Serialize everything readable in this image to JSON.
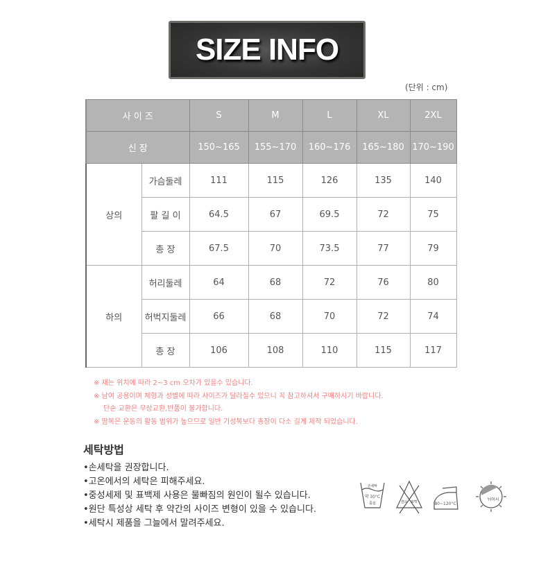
{
  "title": "SIZE INFO",
  "unit": "(단위 : cm)",
  "header": {
    "size_label": "사  이  즈",
    "height_label": "신          장",
    "sizes": [
      "S",
      "M",
      "L",
      "XL",
      "2XL"
    ],
    "heights": [
      "150~165",
      "155~170",
      "160~176",
      "165~180",
      "170~190"
    ]
  },
  "groups": [
    {
      "label": "상의",
      "rows": [
        {
          "label": "가슴둘레",
          "values": [
            "111",
            "115",
            "126",
            "135",
            "140"
          ]
        },
        {
          "label": "팔 길 이",
          "values": [
            "64.5",
            "67",
            "69.5",
            "72",
            "75"
          ]
        },
        {
          "label": "총    장",
          "values": [
            "67.5",
            "70",
            "73.5",
            "77",
            "79"
          ]
        }
      ]
    },
    {
      "label": "하의",
      "rows": [
        {
          "label": "허리둘레",
          "values": [
            "64",
            "68",
            "72",
            "76",
            "80"
          ]
        },
        {
          "label": "허벅지둘레",
          "values": [
            "66",
            "68",
            "70",
            "72",
            "74"
          ]
        },
        {
          "label": "총    장",
          "values": [
            "106",
            "108",
            "110",
            "115",
            "117"
          ]
        }
      ]
    }
  ],
  "notes": [
    "※ 재는 위치에 따라 2~3 cm 오차가 있을수 있습니다.",
    "※ 남여 공용이며 체형과 성별에 따라 사이즈가 달라질수 있으니 꼭 참고하셔서 구매하시기 바랍니다.",
    "단순 교환은 무상교환,반품이 불가합니다.",
    "※ 땀복은 운동의 활동 범위가 높으므로 일반 기성복보다 총장이 다소 길게 제작 되었습니다."
  ],
  "washing": {
    "title": "세탁방법",
    "items": [
      "•손세탁을 권장합니다.",
      "•고온에서의 세탁은 피해주세요.",
      "•중성세제 및 표백제 사용은 물빠짐의 원인이 될수 있습니다.",
      "•원단 특성상 세탁 후 약간의 사이즈 변형이 있을 수 있습니다.",
      "•세탁시 제품을 그늘에서 말려주세요."
    ],
    "icons": [
      {
        "name": "hand-wash-icon",
        "text": [
          "손세탁",
          "약 30°C",
          "중성"
        ]
      },
      {
        "name": "no-bleach-icon",
        "text": [
          "염소",
          "표백"
        ]
      },
      {
        "name": "iron-icon",
        "text": "80~120°C"
      },
      {
        "name": "shade-dry-icon",
        "text": "뉘어서"
      }
    ]
  }
}
